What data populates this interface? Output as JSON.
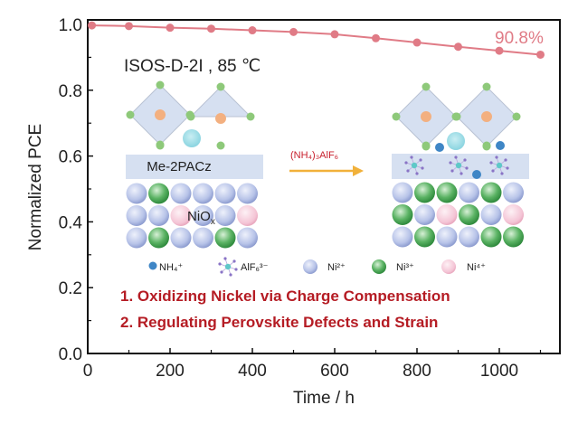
{
  "chart_data": {
    "type": "line",
    "title": "",
    "xlabel": "Time / h",
    "ylabel": "Normalized PCE",
    "xlim": [
      0,
      1150
    ],
    "ylim": [
      0.0,
      1.0
    ],
    "x_ticks": [
      0,
      200,
      400,
      600,
      800,
      1000
    ],
    "x_tick_labels": [
      "0",
      "200",
      "400",
      "600",
      "800",
      "1000"
    ],
    "x_minor_ticks": [
      100,
      300,
      500,
      700,
      900,
      1100
    ],
    "y_ticks": [
      0.0,
      0.2,
      0.4,
      0.6,
      0.8,
      1.0
    ],
    "y_tick_labels": [
      "0.0",
      "0.2",
      "0.4",
      "0.6",
      "0.8",
      "1.0"
    ],
    "y_minor_ticks": [
      0.1,
      0.3,
      0.5,
      0.7,
      0.9
    ],
    "grid": false,
    "series": [
      {
        "name": "Normalized PCE",
        "color": "#e07b86",
        "x": [
          10,
          100,
          200,
          300,
          400,
          500,
          600,
          700,
          800,
          900,
          1000,
          1100
        ],
        "y": [
          0.997,
          0.995,
          0.99,
          0.987,
          0.982,
          0.977,
          0.97,
          0.958,
          0.945,
          0.932,
          0.92,
          0.908
        ]
      }
    ],
    "annotations": {
      "condition": "ISOS-D-2I , 85 ℃",
      "end_value": "90.8%"
    },
    "inset": {
      "left_layer_label": "Me-2PACz",
      "left_substrate_label": "NiO",
      "left_substrate_subscript": "x",
      "reagent": "(NH₄)₃AlF₆",
      "legend": [
        {
          "icon": "dot",
          "label": "NH₄⁺",
          "color": "#3f86c6"
        },
        {
          "icon": "octahedral-anion",
          "label": "AlF₆³⁻",
          "color": "#5fc8c8"
        },
        {
          "icon": "sphere",
          "label": "Ni²⁺",
          "color": "#b9c5ea"
        },
        {
          "icon": "sphere",
          "label": "Ni³⁺",
          "color": "#4ea65a"
        },
        {
          "icon": "sphere",
          "label": "Ni⁴⁺",
          "color": "#f5c7d8"
        }
      ],
      "findings": [
        "1. Oxidizing Nickel via Charge Compensation",
        "2. Regulating Perovskite Defects and Strain"
      ]
    }
  }
}
